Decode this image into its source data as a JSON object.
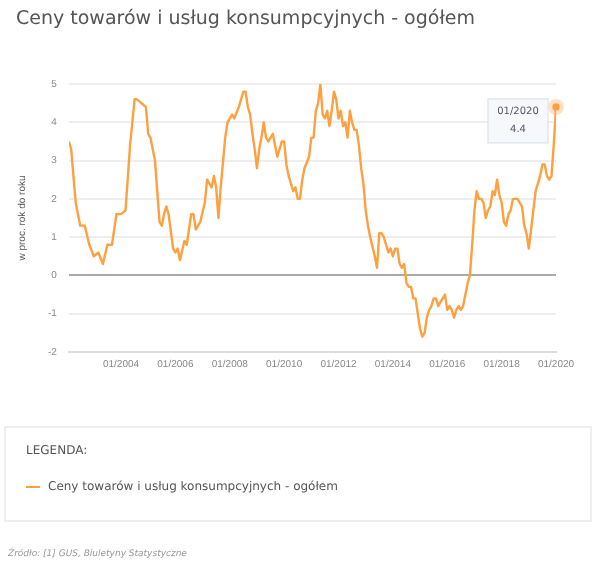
{
  "chart_data": {
    "type": "line",
    "title": "Ceny towarów i usług konsumpcyjnych - ogółem",
    "ylabel": "w proc. rok do roku",
    "legend_title": "LEGENDA:",
    "legend": "bottom",
    "grid": "y",
    "marker": "none",
    "line_style": "solid",
    "xlim": [
      "2002-02",
      "2020-01"
    ],
    "xticks": [
      {
        "value": "2004-01",
        "label": "01/2004"
      },
      {
        "value": "2006-01",
        "label": "01/2006"
      },
      {
        "value": "2008-01",
        "label": "01/2008"
      },
      {
        "value": "2010-01",
        "label": "01/2010"
      },
      {
        "value": "2012-01",
        "label": "01/2012"
      },
      {
        "value": "2014-01",
        "label": "01/2014"
      },
      {
        "value": "2016-01",
        "label": "01/2016"
      },
      {
        "value": "2018-01",
        "label": "01/2018"
      },
      {
        "value": "2020-01",
        "label": "01/2020"
      }
    ],
    "ylim": [
      -2,
      5
    ],
    "yticks": [
      -2,
      -1,
      0,
      1,
      2,
      3,
      4,
      5
    ],
    "x": [
      "2002-02",
      "2002-03",
      "2002-05",
      "2002-07",
      "2002-09",
      "2002-11",
      "2003-01",
      "2003-03",
      "2003-05",
      "2003-07",
      "2003-09",
      "2003-11",
      "2004-01",
      "2004-03",
      "2004-05",
      "2004-07",
      "2004-08",
      "2004-10",
      "2004-12",
      "2005-01",
      "2005-02",
      "2005-04",
      "2005-06",
      "2005-07",
      "2005-08",
      "2005-09",
      "2005-10",
      "2005-12",
      "2006-01",
      "2006-02",
      "2006-03",
      "2006-05",
      "2006-06",
      "2006-08",
      "2006-09",
      "2006-10",
      "2006-12",
      "2007-02",
      "2007-03",
      "2007-05",
      "2007-06",
      "2007-07",
      "2007-08",
      "2007-09",
      "2007-11",
      "2007-12",
      "2008-02",
      "2008-03",
      "2008-05",
      "2008-06",
      "2008-07",
      "2008-08",
      "2008-09",
      "2008-10",
      "2008-11",
      "2008-12",
      "2009-01",
      "2009-02",
      "2009-03",
      "2009-04",
      "2009-05",
      "2009-06",
      "2009-07",
      "2009-08",
      "2009-09",
      "2009-10",
      "2009-11",
      "2009-12",
      "2010-01",
      "2010-02",
      "2010-03",
      "2010-05",
      "2010-06",
      "2010-07",
      "2010-08",
      "2010-09",
      "2010-10",
      "2010-12",
      "2011-01",
      "2011-02",
      "2011-03",
      "2011-04",
      "2011-05",
      "2011-06",
      "2011-07",
      "2011-08",
      "2011-09",
      "2011-10",
      "2011-11",
      "2011-12",
      "2012-01",
      "2012-02",
      "2012-03",
      "2012-04",
      "2012-05",
      "2012-06",
      "2012-07",
      "2012-08",
      "2012-09",
      "2012-10",
      "2012-11",
      "2012-12",
      "2013-01",
      "2013-02",
      "2013-03",
      "2013-05",
      "2013-06",
      "2013-07",
      "2013-08",
      "2013-09",
      "2013-10",
      "2013-11",
      "2013-12",
      "2014-01",
      "2014-02",
      "2014-03",
      "2014-04",
      "2014-05",
      "2014-06",
      "2014-07",
      "2014-08",
      "2014-09",
      "2014-10",
      "2014-11",
      "2014-12",
      "2015-01",
      "2015-02",
      "2015-03",
      "2015-04",
      "2015-05",
      "2015-06",
      "2015-07",
      "2015-08",
      "2015-09",
      "2015-10",
      "2015-11",
      "2015-12",
      "2016-01",
      "2016-02",
      "2016-03",
      "2016-04",
      "2016-05",
      "2016-06",
      "2016-07",
      "2016-08",
      "2016-09",
      "2016-10",
      "2016-11",
      "2016-12",
      "2017-01",
      "2017-02",
      "2017-03",
      "2017-04",
      "2017-05",
      "2017-06",
      "2017-07",
      "2017-08",
      "2017-09",
      "2017-10",
      "2017-11",
      "2017-12",
      "2018-01",
      "2018-02",
      "2018-03",
      "2018-04",
      "2018-05",
      "2018-06",
      "2018-07",
      "2018-08",
      "2018-09",
      "2018-10",
      "2018-11",
      "2018-12",
      "2019-01",
      "2019-02",
      "2019-03",
      "2019-04",
      "2019-05",
      "2019-06",
      "2019-07",
      "2019-08",
      "2019-09",
      "2019-10",
      "2019-11",
      "2019-12",
      "2020-01"
    ],
    "series": [
      {
        "name": "Ceny towarów i usług konsumpcyjnych - ogółem",
        "color": "#ffa040",
        "values": [
          3.5,
          3.3,
          1.9,
          1.3,
          1.3,
          0.8,
          0.5,
          0.6,
          0.3,
          0.8,
          0.8,
          1.6,
          1.6,
          1.7,
          3.4,
          4.6,
          4.6,
          4.5,
          4.4,
          3.7,
          3.6,
          3.0,
          1.4,
          1.3,
          1.6,
          1.8,
          1.6,
          0.7,
          0.6,
          0.7,
          0.4,
          0.9,
          0.8,
          1.6,
          1.6,
          1.2,
          1.4,
          1.9,
          2.5,
          2.3,
          2.6,
          2.3,
          1.5,
          2.3,
          3.6,
          4.0,
          4.2,
          4.1,
          4.4,
          4.6,
          4.8,
          4.8,
          4.4,
          4.2,
          3.7,
          3.3,
          2.8,
          3.3,
          3.6,
          4.0,
          3.6,
          3.5,
          3.6,
          3.7,
          3.4,
          3.1,
          3.3,
          3.5,
          3.5,
          2.9,
          2.6,
          2.2,
          2.3,
          2.0,
          2.0,
          2.5,
          2.8,
          3.1,
          3.6,
          3.6,
          4.3,
          4.5,
          5.0,
          4.2,
          4.1,
          4.3,
          3.9,
          4.3,
          4.8,
          4.6,
          4.1,
          4.3,
          3.9,
          4.0,
          3.6,
          4.3,
          4.0,
          3.8,
          3.8,
          3.4,
          2.8,
          2.4,
          1.7,
          1.3,
          1.0,
          0.5,
          0.2,
          1.1,
          1.1,
          1.0,
          0.8,
          0.6,
          0.7,
          0.5,
          0.7,
          0.7,
          0.3,
          0.2,
          0.3,
          -0.2,
          -0.3,
          -0.3,
          -0.6,
          -0.6,
          -1.0,
          -1.4,
          -1.6,
          -1.5,
          -1.1,
          -0.9,
          -0.8,
          -0.6,
          -0.6,
          -0.8,
          -0.7,
          -0.6,
          -0.5,
          -0.9,
          -0.8,
          -0.9,
          -1.1,
          -0.9,
          -0.8,
          -0.9,
          -0.8,
          -0.5,
          -0.2,
          0.0,
          0.8,
          1.7,
          2.2,
          2.0,
          2.0,
          1.9,
          1.5,
          1.7,
          1.8,
          2.2,
          2.1,
          2.5,
          2.1,
          1.9,
          1.4,
          1.3,
          1.6,
          1.7,
          2.0,
          2.0,
          2.0,
          1.9,
          1.8,
          1.3,
          1.1,
          0.7,
          1.2,
          1.7,
          2.2,
          2.4,
          2.6,
          2.9,
          2.9,
          2.6,
          2.5,
          2.6,
          3.4,
          4.4
        ]
      }
    ],
    "annotations": [
      {
        "text": "01/2020 4.4",
        "x": "2020-01",
        "y": 4.4
      },
      "Źródło: [1] GUS, Biuletyny Statystyczne"
    ]
  }
}
